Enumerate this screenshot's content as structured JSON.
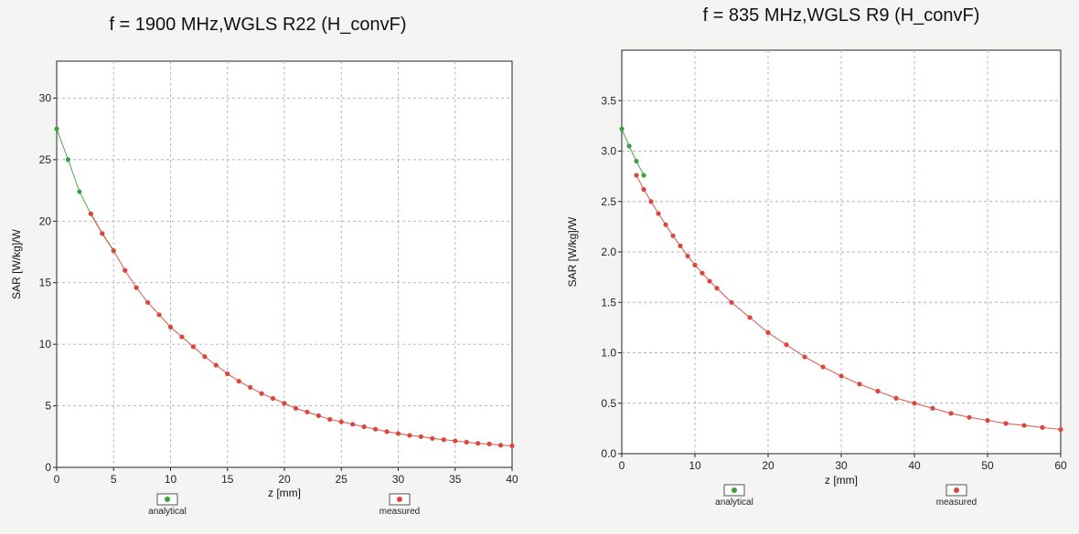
{
  "chart_data": [
    {
      "type": "line",
      "title": "f = 1900 MHz,WGLS R22 (H_convF)",
      "xlabel": "z [mm]",
      "ylabel": "SAR [W/kg]/W",
      "xlim": [
        0,
        40
      ],
      "ylim": [
        0,
        33
      ],
      "xticks": [
        "0",
        "5",
        "10",
        "15",
        "20",
        "25",
        "30",
        "35",
        "40"
      ],
      "yticks": [
        "0",
        "5",
        "10",
        "15",
        "20",
        "25",
        "30"
      ],
      "grid": true,
      "legend": [
        "analytical",
        "measured"
      ],
      "legend_position": "bottom",
      "series": [
        {
          "name": "analytical",
          "color": "#3f9f3f",
          "x": [
            0,
            1,
            2,
            3,
            4,
            5
          ],
          "y": [
            27.5,
            25.0,
            22.4,
            20.6,
            19.0,
            17.6
          ]
        },
        {
          "name": "measured",
          "color": "#d9483b",
          "x": [
            3,
            4,
            5,
            6,
            7,
            8,
            9,
            10,
            11,
            12,
            13,
            14,
            15,
            16,
            17,
            18,
            19,
            20,
            21,
            22,
            23,
            24,
            25,
            26,
            27,
            28,
            29,
            30,
            31,
            32,
            33,
            34,
            35,
            36,
            37,
            38,
            39,
            40
          ],
          "y": [
            20.6,
            19.0,
            17.6,
            16.0,
            14.6,
            13.4,
            12.4,
            11.4,
            10.6,
            9.8,
            9.0,
            8.3,
            7.6,
            7.0,
            6.5,
            6.0,
            5.6,
            5.2,
            4.8,
            4.5,
            4.2,
            3.9,
            3.7,
            3.5,
            3.3,
            3.1,
            2.9,
            2.75,
            2.6,
            2.5,
            2.35,
            2.25,
            2.15,
            2.05,
            1.95,
            1.9,
            1.8,
            1.75
          ]
        }
      ]
    },
    {
      "type": "line",
      "title": "f = 835 MHz,WGLS R9 (H_convF)",
      "xlabel": "z [mm]",
      "ylabel": "SAR [W/kg]/W",
      "xlim": [
        0,
        60
      ],
      "ylim": [
        0,
        4.0
      ],
      "xticks": [
        "0",
        "10",
        "20",
        "30",
        "40",
        "50",
        "60"
      ],
      "yticks": [
        "0.0",
        "0.5",
        "1.0",
        "1.5",
        "2.0",
        "2.5",
        "3.0",
        "3.5"
      ],
      "grid": true,
      "legend": [
        "analytical",
        "measured"
      ],
      "legend_position": "bottom",
      "series": [
        {
          "name": "analytical",
          "color": "#3f9f3f",
          "x": [
            0,
            1,
            2,
            3
          ],
          "y": [
            3.22,
            3.05,
            2.9,
            2.76
          ]
        },
        {
          "name": "measured",
          "color": "#d9483b",
          "x": [
            2,
            3,
            4,
            5,
            6,
            7,
            8,
            9,
            10,
            11,
            12,
            13,
            15,
            17.5,
            20,
            22.5,
            25,
            27.5,
            30,
            32.5,
            35,
            37.5,
            40,
            42.5,
            45,
            47.5,
            50,
            52.5,
            55,
            57.5,
            60
          ],
          "y": [
            2.76,
            2.62,
            2.5,
            2.38,
            2.27,
            2.16,
            2.06,
            1.96,
            1.87,
            1.79,
            1.71,
            1.64,
            1.5,
            1.35,
            1.2,
            1.08,
            0.96,
            0.86,
            0.77,
            0.69,
            0.62,
            0.55,
            0.5,
            0.45,
            0.4,
            0.36,
            0.33,
            0.3,
            0.28,
            0.26,
            0.24
          ]
        }
      ]
    }
  ]
}
